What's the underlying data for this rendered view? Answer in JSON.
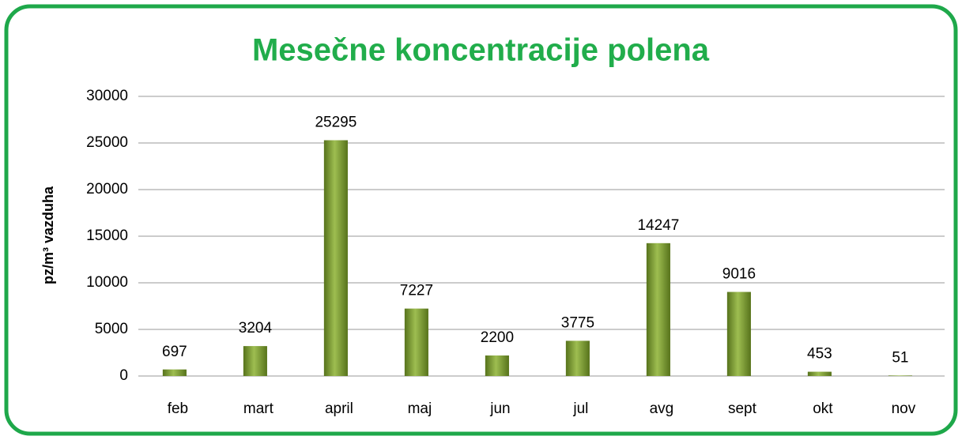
{
  "chart_data": {
    "type": "bar",
    "title": "Mesečne koncentracije polena",
    "y_label": "pz/m³ vazduha",
    "categories": [
      "feb",
      "mart",
      "april",
      "maj",
      "jun",
      "jul",
      "avg",
      "sept",
      "okt",
      "nov"
    ],
    "values": [
      697,
      3204,
      25295,
      7227,
      2200,
      3775,
      14247,
      9016,
      453,
      51
    ],
    "color": "#7d9c2f",
    "ylim": [
      0,
      30000
    ],
    "yticks": [
      0,
      5000,
      10000,
      15000,
      20000,
      25000,
      30000
    ],
    "grid": true
  }
}
